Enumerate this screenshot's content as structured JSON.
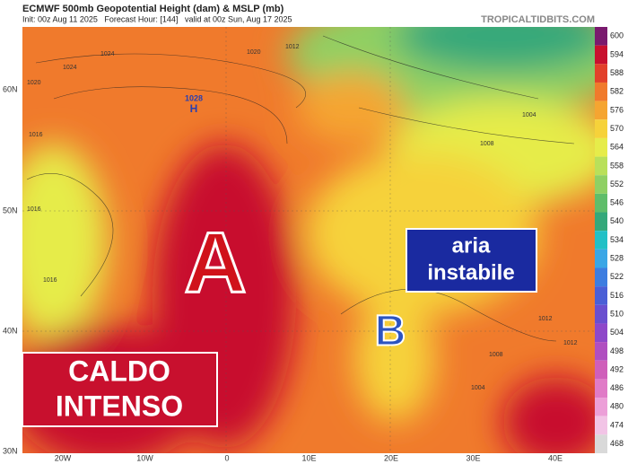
{
  "header": {
    "title": "ECMWF 500mb Geopotential Height (dam) & MSLP (mb)",
    "subtitle": "Init: 00z Aug 11 2025   Forecast Hour: [144]   valid at 00z Sun, Aug 17 2025",
    "source": "TROPICALTIDBITS.COM"
  },
  "annotations": {
    "high_west": "A",
    "low_east": "B",
    "box_east": [
      "aria",
      "instabile"
    ],
    "box_west": [
      "CALDO",
      "INTENSO"
    ],
    "pressure_center": {
      "label": "1028",
      "symbol": "H"
    }
  },
  "isobar_labels": [
    "1020",
    "1024",
    "1020",
    "1016",
    "1016",
    "1016",
    "1024",
    "1012",
    "1012",
    "1012",
    "1008",
    "1004",
    "1004",
    "1008"
  ],
  "lat_labels": [
    "60N",
    "50N",
    "40N",
    "30N"
  ],
  "lon_labels": [
    "20W",
    "10W",
    "0",
    "10E",
    "20E",
    "30E",
    "40E"
  ],
  "colorbar": {
    "labels": [
      600,
      594,
      588,
      582,
      576,
      570,
      564,
      558,
      552,
      546,
      540,
      534,
      528,
      522,
      516,
      510,
      504,
      498,
      492,
      486,
      480,
      474,
      468
    ],
    "colors": [
      "#7a1a6e",
      "#c8102e",
      "#e2402a",
      "#f07a2c",
      "#f5a531",
      "#f6d23a",
      "#e6ec4a",
      "#b9e05a",
      "#8fd064",
      "#5fbd6a",
      "#34a87a",
      "#22c0c6",
      "#3aa6e6",
      "#3d7de0",
      "#4a5fd6",
      "#6a4fcf",
      "#8e48c9",
      "#b04fc0",
      "#cf5fba",
      "#e07bc7",
      "#ec9fd8",
      "#f2c4e6",
      "#d9d9d9"
    ]
  }
}
